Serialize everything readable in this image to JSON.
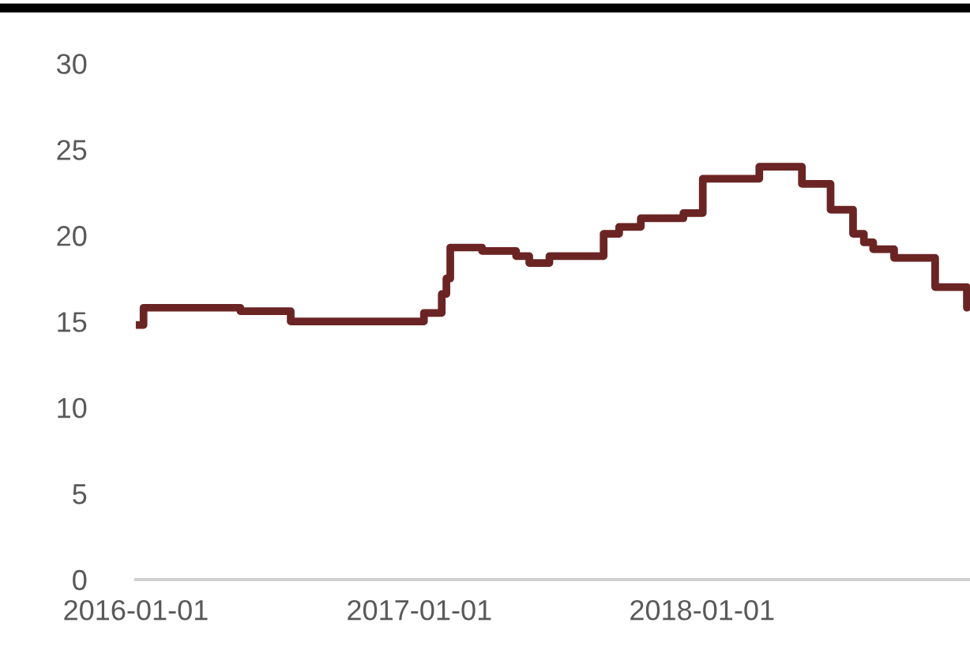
{
  "chart_data": {
    "type": "step",
    "x": [
      "2016-01-01",
      "2016-01-11",
      "2016-05-15",
      "2016-07-19",
      "2017-01-07",
      "2017-01-30",
      "2017-02-05",
      "2017-02-10",
      "2017-03-23",
      "2017-05-06",
      "2017-05-23",
      "2017-06-18",
      "2017-08-27",
      "2017-09-16",
      "2017-10-14",
      "2017-12-08",
      "2018-01-02",
      "2018-03-16",
      "2018-05-10",
      "2018-06-16",
      "2018-07-15",
      "2018-07-29",
      "2018-08-10",
      "2018-09-06",
      "2018-10-29",
      "2018-12-09"
    ],
    "series": [
      {
        "color": "#6b2424",
        "values": [
          14.8,
          15.8,
          15.6,
          15.0,
          15.5,
          16.6,
          17.5,
          19.3,
          19.1,
          18.8,
          18.4,
          18.8,
          20.1,
          20.5,
          21.0,
          21.3,
          23.3,
          24.0,
          23.0,
          21.5,
          20.1,
          19.6,
          19.2,
          18.7,
          17.0,
          15.8
        ]
      }
    ],
    "xlim": [
      "2016-01-01",
      "2018-12-13"
    ],
    "xticks": [
      {
        "value": "2016-01-01",
        "label": "2016-01-01"
      },
      {
        "value": "2017-01-01",
        "label": "2017-01-01"
      },
      {
        "value": "2018-01-01",
        "label": "2018-01-01"
      }
    ],
    "ylim": [
      0,
      30
    ],
    "yticks": [
      0,
      5,
      10,
      15,
      20,
      25,
      30
    ],
    "grid": false,
    "legend": false,
    "line_style": "solid",
    "marker": "none"
  }
}
